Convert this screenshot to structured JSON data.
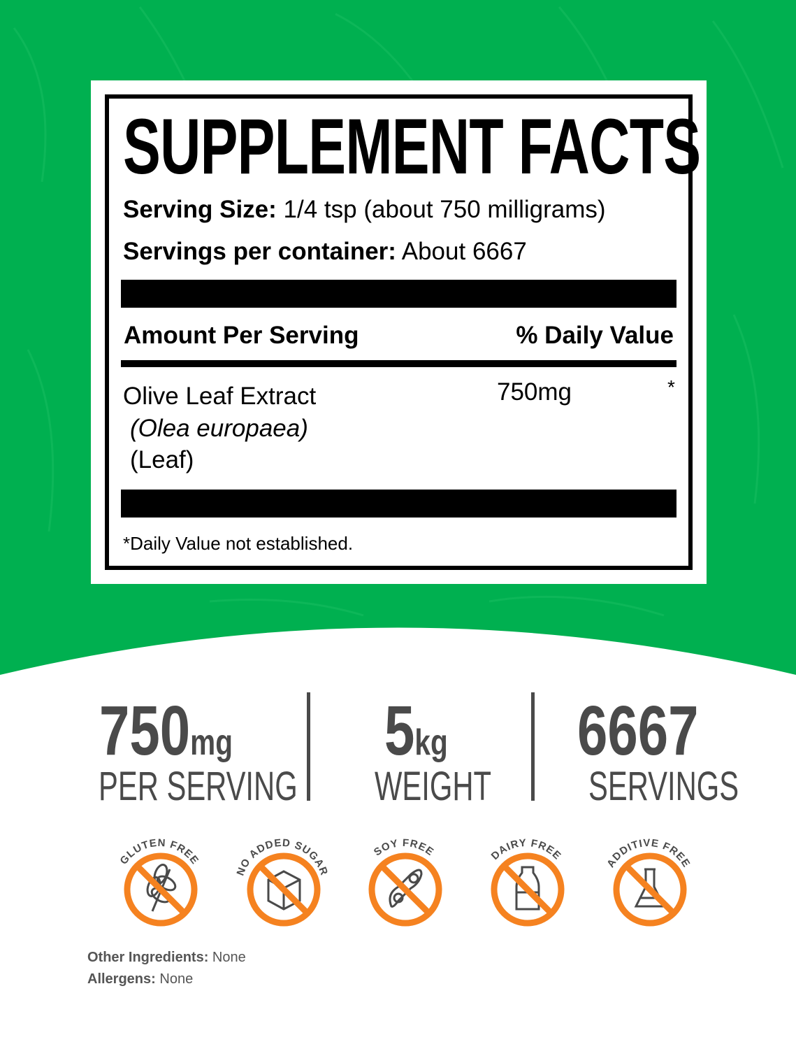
{
  "colors": {
    "background_green": "#00b050",
    "stat_gray": "#4a4a4a",
    "badge_orange": "#f58220"
  },
  "label": {
    "title": "SUPPLEMENT FACTS",
    "serving_size_label": "Serving Size:",
    "serving_size_value": "1/4 tsp (about 750 milligrams)",
    "servings_label": "Servings per container:",
    "servings_value": "About 6667",
    "amount_header": "Amount Per Serving",
    "dv_header": "% Daily Value",
    "ingredient": {
      "name": "Olive Leaf Extract",
      "latin": "(Olea europaea)",
      "part": "(Leaf)",
      "amount": "750mg",
      "dv": "*"
    },
    "footnote": "*Daily Value not established."
  },
  "stats": [
    {
      "value": "750",
      "unit": "mg",
      "label": "PER SERVING"
    },
    {
      "value": "5",
      "unit": "kg",
      "label": "WEIGHT"
    },
    {
      "value": "6667",
      "unit": "",
      "label": "SERVINGS"
    }
  ],
  "badges": [
    {
      "text": "GLUTEN FREE",
      "icon": "wheat-icon"
    },
    {
      "text": "NO ADDED SUGAR",
      "icon": "sugar-cube-icon"
    },
    {
      "text": "SOY FREE",
      "icon": "soybean-icon"
    },
    {
      "text": "DAIRY FREE",
      "icon": "milk-bottle-icon"
    },
    {
      "text": "ADDITIVE FREE",
      "icon": "flask-icon"
    }
  ],
  "footer": {
    "other_label": "Other Ingredients:",
    "other_value": "None",
    "allergens_label": "Allergens:",
    "allergens_value": "None"
  }
}
